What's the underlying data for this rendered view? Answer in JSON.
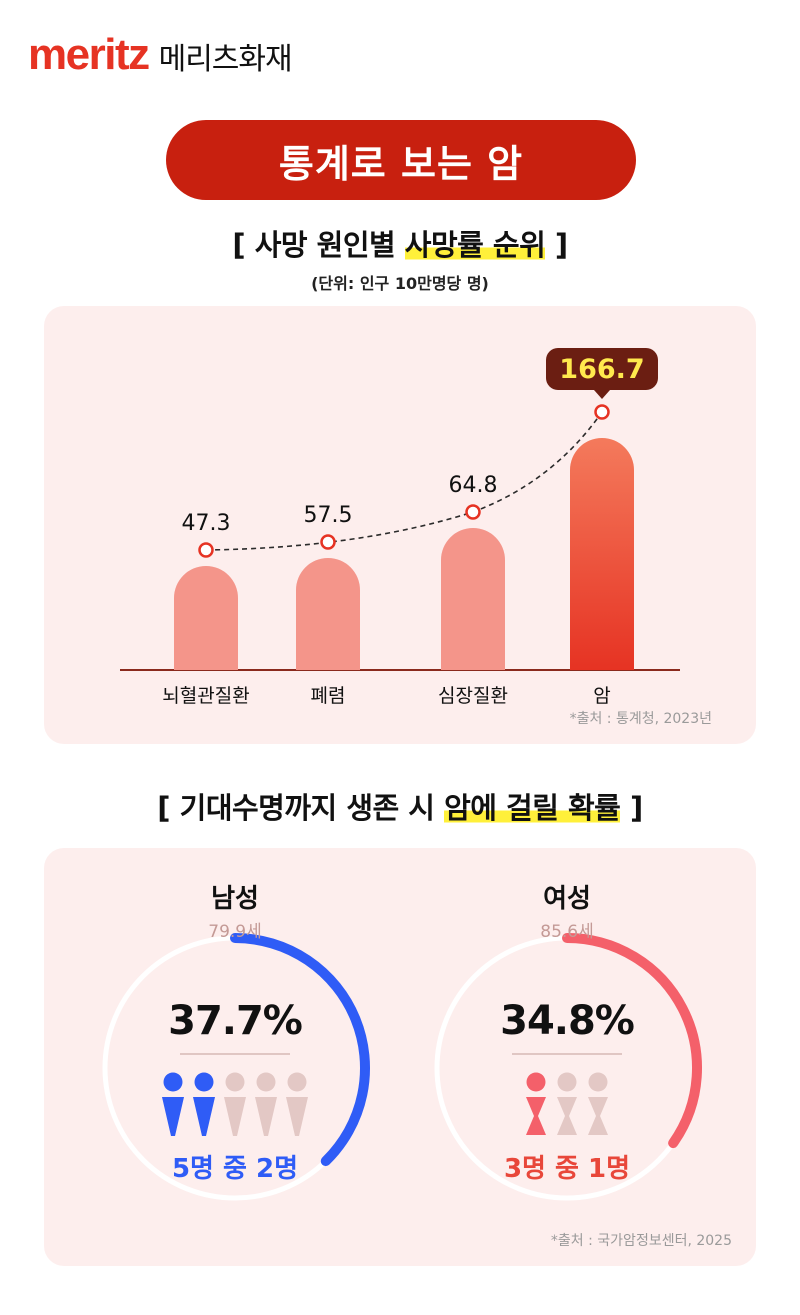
{
  "brand": {
    "wordmark": "meritz",
    "korean": "메리츠화재",
    "color": "#e63323"
  },
  "header": {
    "title": "통계로 보는 암",
    "color": "#c8200f"
  },
  "section1": {
    "title_plain": "[ 사망 원인별 ",
    "title_highlight": "사망률 순위",
    "title_end": " ]",
    "unit": "(단위: 인구 10만명당 명)",
    "source": "*출처 : 통계청, 2023년"
  },
  "chart_data": [
    {
      "type": "bar",
      "categories": [
        "뇌혈관질환",
        "폐렴",
        "심장질환",
        "암"
      ],
      "values": [
        47.3,
        57.5,
        64.8,
        166.7
      ],
      "value_labels": [
        "47.3",
        "57.5",
        "64.8",
        "166.7"
      ],
      "title": "[ 사망 원인별 사망률 순위 ]",
      "subtitle": "(단위: 인구 10만명당 명)",
      "highlight_category": "암",
      "colors": {
        "bar": "#f4958a",
        "highlight": "#e63323",
        "callout": "#6b1e12",
        "callout_text": "#ffe94d"
      },
      "grid": false,
      "trend_line": "dashed"
    },
    {
      "type": "pie",
      "title": "[ 기대수명까지 생존 시 암에 걸릴 확률 ]",
      "groups": [
        {
          "name": "남성",
          "age": "79.9세",
          "value": 37.7,
          "label": "37.7%",
          "ratio": "5명 중 2명",
          "people_total": 5,
          "people_highlighted": 2,
          "color": "#2f5cf6"
        },
        {
          "name": "여성",
          "age": "85.6세",
          "value": 34.8,
          "label": "34.8%",
          "ratio": "3명 중 1명",
          "people_total": 3,
          "people_highlighted": 1,
          "color": "#f4606a"
        }
      ]
    }
  ],
  "section2": {
    "title_plain": "[ 기대수명까지 생존 시 ",
    "title_highlight": "암에 걸릴 확률",
    "title_end": " ]",
    "source": "*출처 : 국가암정보센터, 2025"
  }
}
